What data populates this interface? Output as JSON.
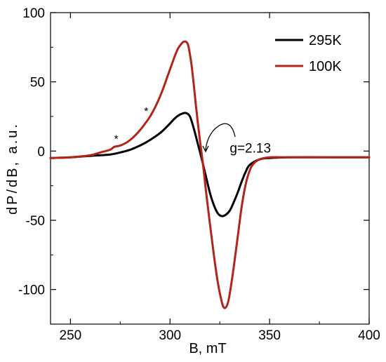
{
  "chart_data": {
    "type": "line",
    "xlabel": "B, mT",
    "ylabel": "dP/dB, a.u.",
    "xlim": [
      240,
      400
    ],
    "ylim": [
      -125,
      100
    ],
    "x_ticks": [
      250,
      300,
      350,
      400
    ],
    "y_ticks": [
      100,
      50,
      0,
      -50,
      -100
    ],
    "x_tick_labels": [
      "250",
      "300",
      "350",
      "400"
    ],
    "y_tick_labels": [
      "100",
      "50",
      "0",
      "-50",
      "-100"
    ],
    "grid": false,
    "legend_position": "top-right",
    "series": [
      {
        "name": "295K",
        "color": "#000000",
        "x": [
          240,
          250,
          260,
          265,
          270,
          275,
          280,
          285,
          290,
          295,
          298,
          300,
          302,
          304,
          306,
          308,
          310,
          312,
          314,
          316,
          318,
          320,
          322,
          324,
          326,
          328,
          330,
          332,
          334,
          336,
          338,
          340,
          345,
          350,
          360,
          380,
          400
        ],
        "y": [
          -5,
          -4.5,
          -3.5,
          -3,
          -2.5,
          -1,
          1,
          4,
          8,
          13,
          17,
          20,
          23,
          25.5,
          27,
          27.5,
          25,
          16,
          5,
          -6,
          -18,
          -30,
          -39,
          -45,
          -47,
          -46,
          -43,
          -37,
          -30,
          -22,
          -15,
          -10,
          -6,
          -5,
          -4.5,
          -4.5,
          -4.5
        ]
      },
      {
        "name": "100K",
        "color": "#b22417",
        "x": [
          240,
          250,
          260,
          265,
          270,
          272,
          275,
          278,
          280,
          283,
          286,
          290,
          293,
          296,
          299,
          302,
          304,
          306,
          307,
          308,
          309,
          310,
          311,
          312,
          313,
          314,
          315,
          316,
          317,
          318,
          320,
          322,
          324,
          326,
          327,
          328,
          329,
          330,
          332,
          334,
          336,
          338,
          340,
          342,
          345,
          350,
          360,
          380,
          400
        ],
        "y": [
          -5,
          -4.5,
          -3,
          -1,
          1,
          3,
          4,
          6,
          8,
          12,
          17,
          25,
          33,
          43,
          55,
          67,
          74,
          78,
          79,
          79,
          77,
          70,
          60,
          47,
          33,
          20,
          8,
          -3,
          -15,
          -28,
          -52,
          -75,
          -95,
          -109,
          -113,
          -113,
          -110,
          -103,
          -84,
          -62,
          -40,
          -24,
          -14,
          -9,
          -6,
          -4.5,
          -4.5,
          -4.5,
          -4.5
        ]
      }
    ],
    "annotations": [
      {
        "text": "*",
        "x": 273,
        "y": 6
      },
      {
        "text": "*",
        "x": 288,
        "y": 26
      },
      {
        "text": "g=2.13",
        "x": 330,
        "y": 2
      }
    ]
  }
}
